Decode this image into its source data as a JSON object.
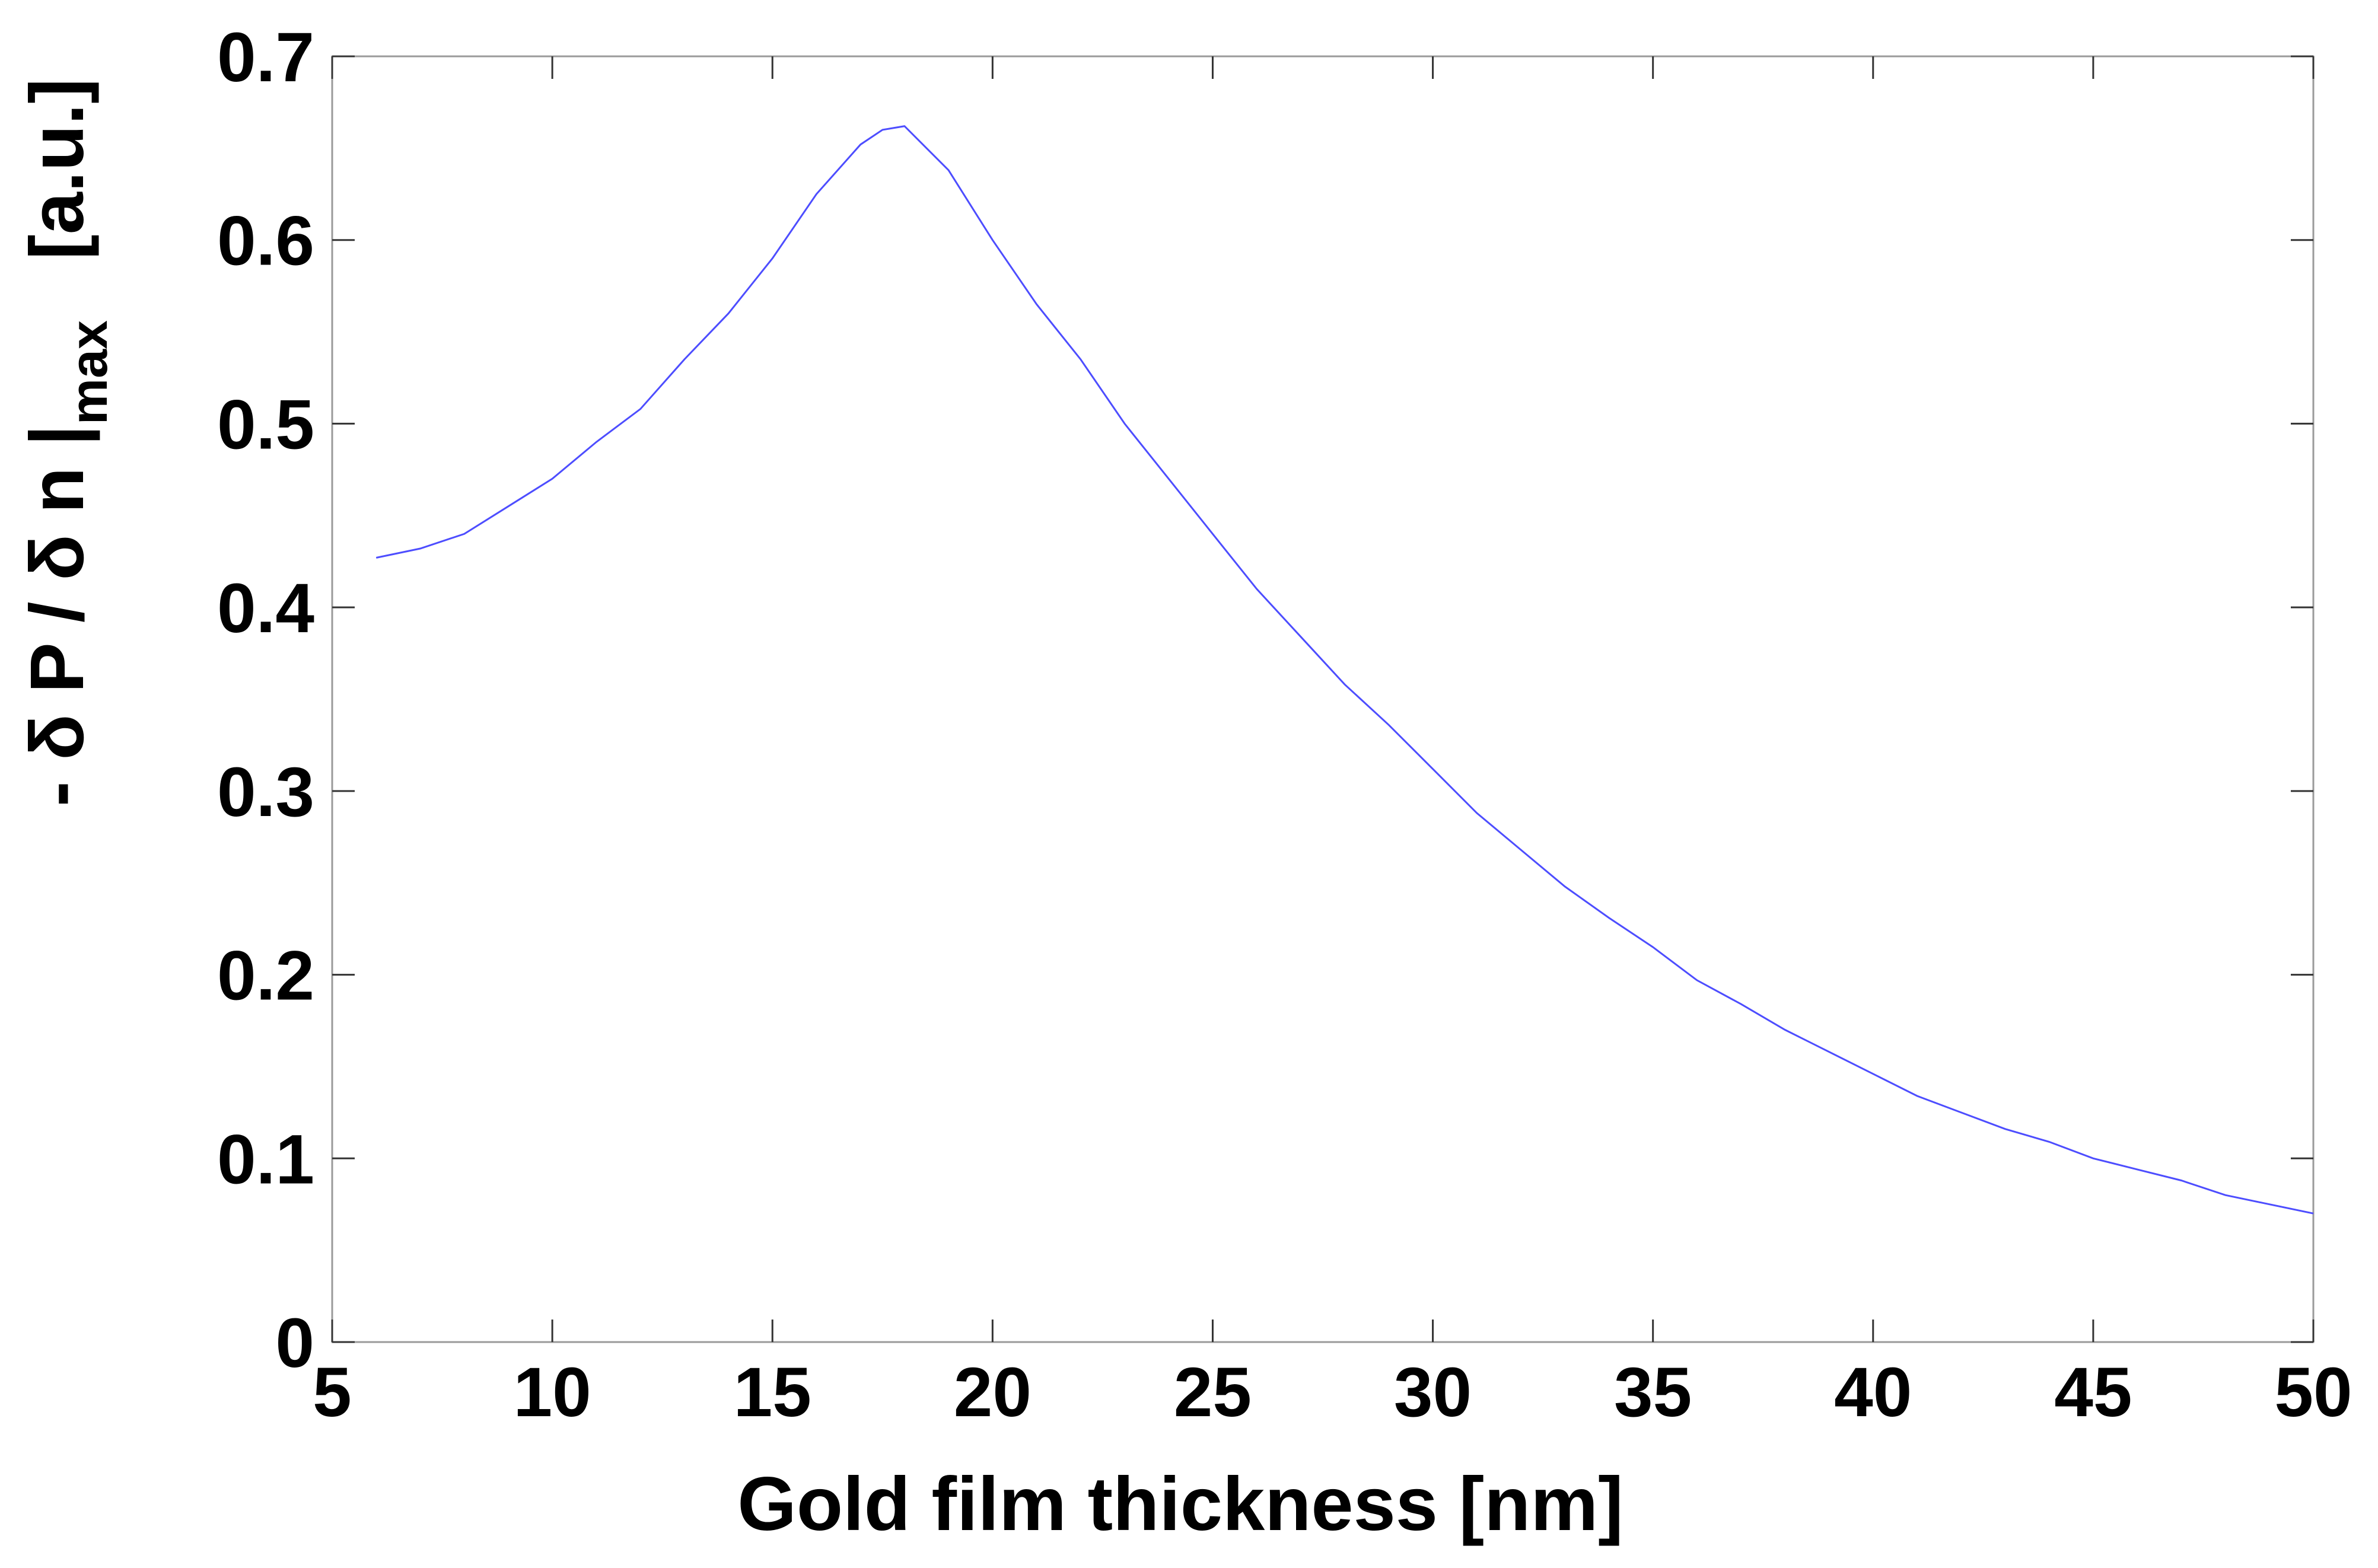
{
  "chart_data": {
    "type": "line",
    "title": "",
    "xlabel": "Gold film thickness [nm]",
    "ylabel": {
      "main": "- δ P / δ n |",
      "subscript": "max",
      "unit": "[a.u.]"
    },
    "xlim": [
      5,
      50
    ],
    "ylim": [
      0,
      0.7
    ],
    "xticks": [
      5,
      10,
      15,
      20,
      25,
      30,
      35,
      40,
      45,
      50
    ],
    "yticks": [
      0,
      0.1,
      0.2,
      0.3,
      0.4,
      0.5,
      0.6,
      0.7
    ],
    "xtick_labels": [
      "5",
      "10",
      "15",
      "20",
      "25",
      "30",
      "35",
      "40",
      "45",
      "50"
    ],
    "ytick_labels": [
      "0",
      "0.1",
      "0.2",
      "0.3",
      "0.4",
      "0.5",
      "0.6",
      "0.7"
    ],
    "grid": false,
    "series": [
      {
        "color": "#4d4dff",
        "x": [
          6,
          7,
          8,
          9,
          10,
          11,
          12,
          13,
          14,
          15,
          16,
          17,
          17.5,
          18,
          19,
          20,
          21,
          22,
          23,
          24,
          25,
          26,
          27,
          28,
          29,
          30,
          31,
          32,
          33,
          34,
          35,
          36,
          37,
          38,
          39,
          40,
          41,
          42,
          43,
          44,
          45,
          46,
          47,
          48,
          49,
          50
        ],
        "y": [
          0.427,
          0.432,
          0.44,
          0.455,
          0.47,
          0.49,
          0.508,
          0.535,
          0.56,
          0.59,
          0.625,
          0.652,
          0.66,
          0.662,
          0.638,
          0.6,
          0.565,
          0.535,
          0.5,
          0.47,
          0.44,
          0.41,
          0.384,
          0.358,
          0.336,
          0.312,
          0.288,
          0.268,
          0.248,
          0.231,
          0.215,
          0.197,
          0.184,
          0.17,
          0.158,
          0.146,
          0.134,
          0.125,
          0.116,
          0.109,
          0.1,
          0.094,
          0.088,
          0.08,
          0.075,
          0.07
        ]
      }
    ]
  }
}
